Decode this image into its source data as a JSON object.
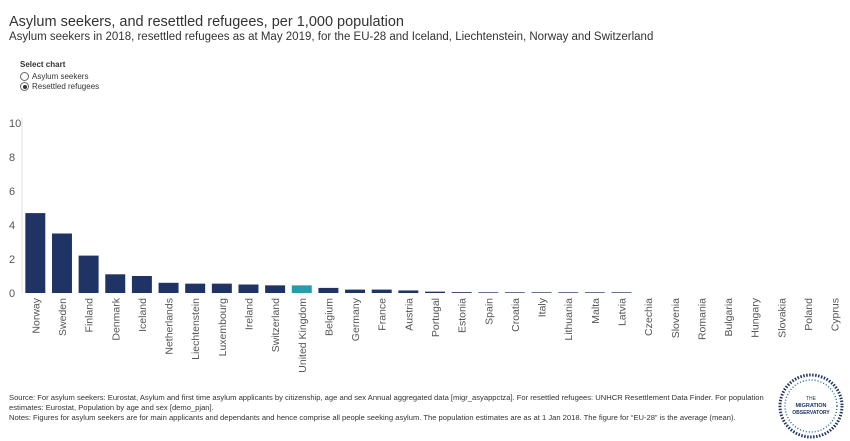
{
  "header": {
    "title": "Asylum seekers, and resettled refugees, per 1,000 population",
    "subtitle": "Asylum seekers in 2018, resettled refugees as at May 2019, for the EU-28 and Iceland, Liechtenstein, Norway and Switzerland"
  },
  "selector": {
    "title": "Select chart",
    "options": [
      "Asylum seekers",
      "Resettled refugees"
    ],
    "selected": "Resettled refugees"
  },
  "colors": {
    "bar": "#1f3464",
    "highlight": "#2a9bab",
    "axis_text": "#555555"
  },
  "chart_data": {
    "type": "bar",
    "categories": [
      "Norway",
      "Sweden",
      "Finland",
      "Denmark",
      "Iceland",
      "Netherlands",
      "Liechtenstein",
      "Luxembourg",
      "Ireland",
      "Switzerland",
      "United Kingdom",
      "Belgium",
      "Germany",
      "France",
      "Austria",
      "Portugal",
      "Estonia",
      "Spain",
      "Croatia",
      "Italy",
      "Lithuania",
      "Malta",
      "Latvia",
      "Czechia",
      "Slovenia",
      "Romania",
      "Bulgaria",
      "Hungary",
      "Slovakia",
      "Poland",
      "Cyprus"
    ],
    "values": [
      4.7,
      3.5,
      2.2,
      1.1,
      1.0,
      0.6,
      0.55,
      0.55,
      0.5,
      0.45,
      0.45,
      0.3,
      0.2,
      0.2,
      0.15,
      0.08,
      0.05,
      0.04,
      0.04,
      0.04,
      0.04,
      0.04,
      0.04,
      0,
      0,
      0,
      0,
      0,
      0,
      0,
      0
    ],
    "highlight": "United Kingdom",
    "title": "Asylum seekers, and resettled refugees, per 1,000 population",
    "xlabel": "",
    "ylabel": "",
    "ylim": [
      0,
      10
    ],
    "yticks": [
      0,
      2,
      4,
      6,
      8,
      10
    ],
    "grid": false
  },
  "footer": {
    "source": "Source: For asylum seekers: Eurostat, Asylum and first time asylum applicants by citizenship, age and sex Annual aggregated data [migr_asyappctza]. For resettled refugees: UNHCR Resettlement Data Finder. For population estimates: Eurostat, Population by age and sex [demo_pjan].",
    "notes": "Notes: Figures for asylum seekers are for main applicants and dependants and hence comprise all people seeking asylum. The population estimates are as at 1 Jan 2018. The figure for “EU-28” is the average (mean)."
  },
  "logo": {
    "line1": "THE",
    "line2": "MIGRATION",
    "line3": "OBSERVATORY"
  }
}
